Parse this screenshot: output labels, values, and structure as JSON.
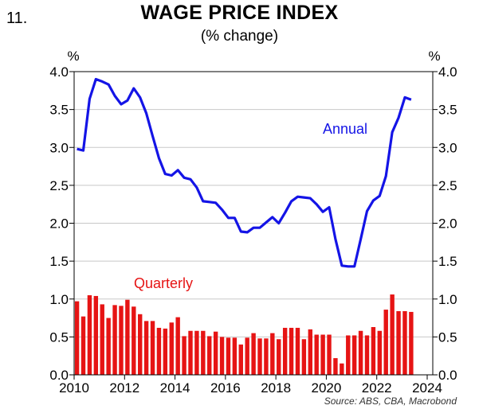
{
  "figure_number": "11.",
  "chart_data": {
    "type": "line+bar",
    "title": "WAGE PRICE INDEX",
    "subtitle": "(% change)",
    "unit_left": "%",
    "unit_right": "%",
    "ylim": [
      0,
      4.0
    ],
    "yticks": [
      "0.0",
      "0.5",
      "1.0",
      "1.5",
      "2.0",
      "2.5",
      "3.0",
      "3.5",
      "4.0"
    ],
    "xlim": [
      2010,
      2024
    ],
    "xticks": [
      "2010",
      "2012",
      "2014",
      "2016",
      "2018",
      "2020",
      "2022",
      "2024"
    ],
    "grid": true,
    "series": [
      {
        "name": "Annual",
        "type": "line",
        "color": "#1414e6",
        "x": [
          2010.0,
          2010.25,
          2010.5,
          2010.75,
          2011.0,
          2011.25,
          2011.5,
          2011.75,
          2012.0,
          2012.25,
          2012.5,
          2012.75,
          2013.0,
          2013.25,
          2013.5,
          2013.75,
          2014.0,
          2014.25,
          2014.5,
          2014.75,
          2015.0,
          2015.25,
          2015.5,
          2015.75,
          2016.0,
          2016.25,
          2016.5,
          2016.75,
          2017.0,
          2017.25,
          2017.5,
          2017.75,
          2018.0,
          2018.25,
          2018.5,
          2018.75,
          2019.0,
          2019.25,
          2019.5,
          2019.75,
          2020.0,
          2020.25,
          2020.5,
          2020.75,
          2021.0,
          2021.25,
          2021.5,
          2021.75,
          2022.0,
          2022.25,
          2022.5,
          2022.75,
          2023.0,
          2023.25
        ],
        "values": [
          2.98,
          2.96,
          3.64,
          3.9,
          3.87,
          3.83,
          3.68,
          3.57,
          3.62,
          3.78,
          3.66,
          3.45,
          3.15,
          2.86,
          2.65,
          2.63,
          2.7,
          2.6,
          2.58,
          2.47,
          2.29,
          2.28,
          2.27,
          2.18,
          2.07,
          2.07,
          1.89,
          1.88,
          1.94,
          1.94,
          2.01,
          2.08,
          2.0,
          2.14,
          2.29,
          2.35,
          2.34,
          2.33,
          2.25,
          2.15,
          2.21,
          1.79,
          1.44,
          1.43,
          1.43,
          1.79,
          2.16,
          2.3,
          2.36,
          2.62,
          3.2,
          3.39,
          3.66,
          3.63
        ]
      },
      {
        "name": "Quarterly",
        "type": "bar",
        "color": "#e61414",
        "x": [
          2010.0,
          2010.25,
          2010.5,
          2010.75,
          2011.0,
          2011.25,
          2011.5,
          2011.75,
          2012.0,
          2012.25,
          2012.5,
          2012.75,
          2013.0,
          2013.25,
          2013.5,
          2013.75,
          2014.0,
          2014.25,
          2014.5,
          2014.75,
          2015.0,
          2015.25,
          2015.5,
          2015.75,
          2016.0,
          2016.25,
          2016.5,
          2016.75,
          2017.0,
          2017.25,
          2017.5,
          2017.75,
          2018.0,
          2018.25,
          2018.5,
          2018.75,
          2019.0,
          2019.25,
          2019.5,
          2019.75,
          2020.0,
          2020.25,
          2020.5,
          2020.75,
          2021.0,
          2021.25,
          2021.5,
          2021.75,
          2022.0,
          2022.25,
          2022.5,
          2022.75,
          2023.0,
          2023.25
        ],
        "values": [
          0.97,
          0.77,
          1.05,
          1.04,
          0.93,
          0.75,
          0.92,
          0.91,
          0.99,
          0.9,
          0.8,
          0.71,
          0.71,
          0.62,
          0.61,
          0.69,
          0.76,
          0.51,
          0.58,
          0.58,
          0.58,
          0.51,
          0.57,
          0.5,
          0.49,
          0.49,
          0.4,
          0.49,
          0.55,
          0.48,
          0.48,
          0.55,
          0.47,
          0.62,
          0.62,
          0.62,
          0.47,
          0.6,
          0.53,
          0.53,
          0.53,
          0.22,
          0.15,
          0.52,
          0.52,
          0.58,
          0.52,
          0.63,
          0.58,
          0.86,
          1.06,
          0.84,
          0.84,
          0.83
        ]
      }
    ],
    "source": "Source: ABS, CBA, Macrobond"
  }
}
